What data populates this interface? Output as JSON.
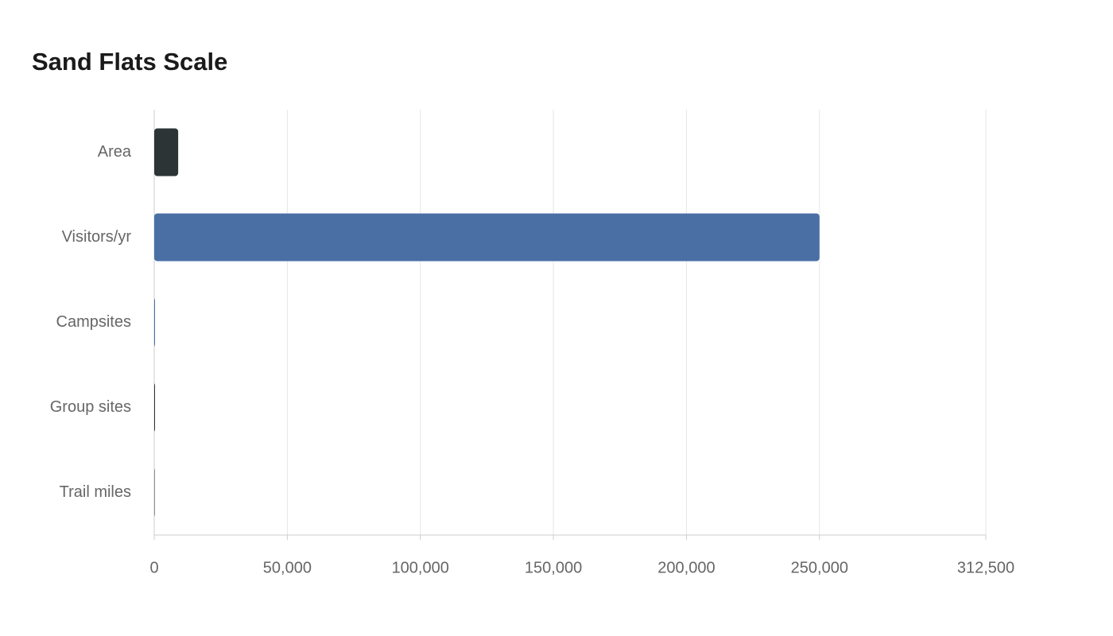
{
  "chart_data": {
    "type": "hbar",
    "title": "Sand Flats Scale",
    "categories": [
      "Area",
      "Visitors/yr",
      "Campsites",
      "Group sites",
      "Trail miles"
    ],
    "values": [
      9000,
      250000,
      150,
      12,
      20
    ],
    "colors": [
      "#2d3436",
      "#4a6fa5",
      "#4a6fa5",
      "#2d3436",
      "#8a8f94"
    ],
    "xlim": [
      0,
      312500
    ],
    "xticks": [
      0,
      {
        "value": 50000,
        "label": "50,000"
      },
      {
        "value": 100000,
        "label": "100,000"
      },
      {
        "value": 150000,
        "label": "150,000"
      },
      {
        "value": 200000,
        "label": "200,000"
      },
      {
        "value": 250000,
        "label": "250,000"
      },
      {
        "value": 312500,
        "label": "312,500"
      }
    ],
    "grid": true
  }
}
